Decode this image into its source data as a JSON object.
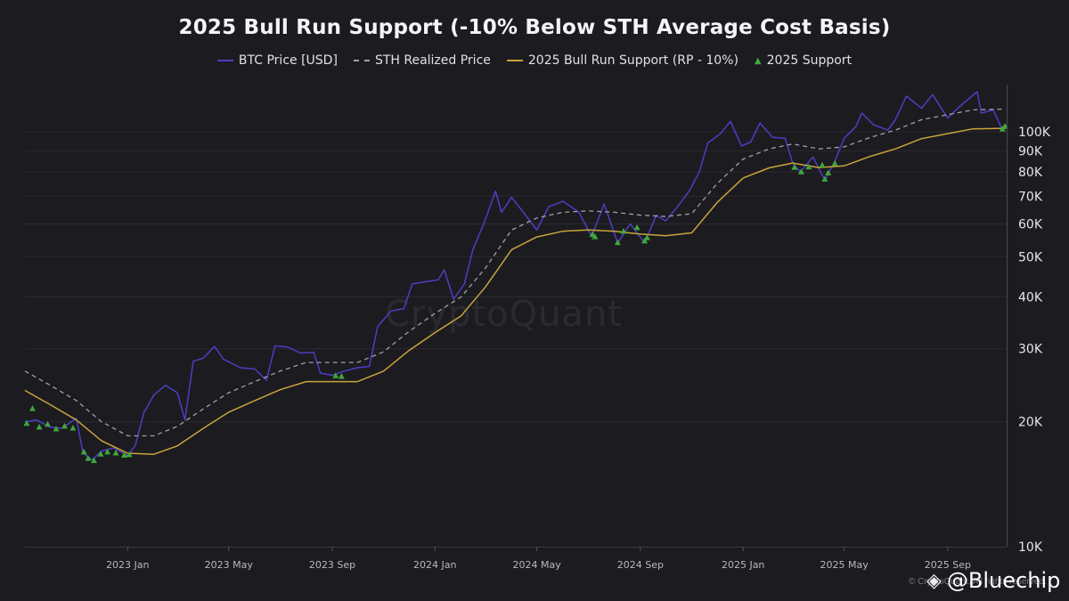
{
  "chart_data": {
    "type": "line",
    "title": "2025 Bull Run Support (-10% Below STH Average Cost Basis)",
    "y_scale": "log",
    "ylim": [
      10000,
      130000
    ],
    "y_ticks": [
      {
        "value": 10000,
        "label": "10K"
      },
      {
        "value": 20000,
        "label": "20K"
      },
      {
        "value": 30000,
        "label": "30K"
      },
      {
        "value": 40000,
        "label": "40K"
      },
      {
        "value": 50000,
        "label": "50K"
      },
      {
        "value": 60000,
        "label": "60K"
      },
      {
        "value": 70000,
        "label": "70K"
      },
      {
        "value": 80000,
        "label": "80K"
      },
      {
        "value": 90000,
        "label": "90K"
      },
      {
        "value": 100000,
        "label": "100K"
      }
    ],
    "xlim": [
      "2022-09-01",
      "2025-11-10"
    ],
    "x_ticks": [
      {
        "date": "2023-01-01",
        "label": "2023 Jan"
      },
      {
        "date": "2023-05-01",
        "label": "2023 May"
      },
      {
        "date": "2023-09-01",
        "label": "2023 Sep"
      },
      {
        "date": "2024-01-01",
        "label": "2024 Jan"
      },
      {
        "date": "2024-05-01",
        "label": "2024 May"
      },
      {
        "date": "2024-09-01",
        "label": "2024 Sep"
      },
      {
        "date": "2025-01-01",
        "label": "2025 Jan"
      },
      {
        "date": "2025-05-01",
        "label": "2025 May"
      },
      {
        "date": "2025-09-01",
        "label": "2025 Sep"
      }
    ],
    "legend_position": "top-center",
    "grid": "horizontal",
    "series": [
      {
        "name": "BTC Price [USD]",
        "color": "#4b3fc4",
        "style": "solid",
        "points": [
          [
            "2022-09-01",
            20000
          ],
          [
            "2022-09-15",
            20200
          ],
          [
            "2022-10-01",
            19400
          ],
          [
            "2022-10-15",
            19300
          ],
          [
            "2022-11-01",
            20400
          ],
          [
            "2022-11-09",
            16800
          ],
          [
            "2022-11-20",
            16200
          ],
          [
            "2022-12-01",
            17000
          ],
          [
            "2022-12-15",
            17300
          ],
          [
            "2023-01-01",
            16600
          ],
          [
            "2023-01-10",
            17500
          ],
          [
            "2023-01-20",
            21000
          ],
          [
            "2023-02-01",
            23200
          ],
          [
            "2023-02-15",
            24500
          ],
          [
            "2023-03-01",
            23500
          ],
          [
            "2023-03-10",
            20200
          ],
          [
            "2023-03-20",
            28000
          ],
          [
            "2023-04-01",
            28500
          ],
          [
            "2023-04-14",
            30400
          ],
          [
            "2023-04-25",
            28300
          ],
          [
            "2023-05-15",
            27000
          ],
          [
            "2023-06-01",
            26800
          ],
          [
            "2023-06-15",
            25200
          ],
          [
            "2023-06-25",
            30500
          ],
          [
            "2023-07-10",
            30300
          ],
          [
            "2023-07-25",
            29300
          ],
          [
            "2023-08-10",
            29400
          ],
          [
            "2023-08-18",
            26200
          ],
          [
            "2023-09-01",
            25900
          ],
          [
            "2023-09-15",
            26500
          ],
          [
            "2023-10-01",
            27000
          ],
          [
            "2023-10-15",
            27200
          ],
          [
            "2023-10-25",
            34000
          ],
          [
            "2023-11-10",
            37000
          ],
          [
            "2023-11-25",
            37500
          ],
          [
            "2023-12-05",
            43000
          ],
          [
            "2023-12-20",
            43500
          ],
          [
            "2024-01-05",
            44000
          ],
          [
            "2024-01-12",
            46500
          ],
          [
            "2024-01-23",
            39500
          ],
          [
            "2024-02-05",
            43000
          ],
          [
            "2024-02-15",
            52000
          ],
          [
            "2024-02-28",
            60000
          ],
          [
            "2024-03-13",
            72000
          ],
          [
            "2024-03-20",
            64000
          ],
          [
            "2024-04-01",
            69500
          ],
          [
            "2024-04-15",
            64000
          ],
          [
            "2024-05-01",
            58000
          ],
          [
            "2024-05-15",
            66000
          ],
          [
            "2024-06-01",
            68000
          ],
          [
            "2024-06-20",
            64000
          ],
          [
            "2024-07-05",
            56000
          ],
          [
            "2024-07-20",
            67000
          ],
          [
            "2024-08-05",
            54000
          ],
          [
            "2024-08-20",
            60000
          ],
          [
            "2024-09-06",
            54000
          ],
          [
            "2024-09-20",
            63000
          ],
          [
            "2024-10-01",
            61000
          ],
          [
            "2024-10-15",
            66000
          ],
          [
            "2024-10-29",
            72000
          ],
          [
            "2024-11-10",
            80000
          ],
          [
            "2024-11-20",
            94000
          ],
          [
            "2024-12-05",
            99000
          ],
          [
            "2024-12-17",
            106000
          ],
          [
            "2024-12-30",
            92500
          ],
          [
            "2025-01-10",
            94500
          ],
          [
            "2025-01-21",
            105000
          ],
          [
            "2025-02-05",
            97000
          ],
          [
            "2025-02-20",
            96500
          ],
          [
            "2025-03-01",
            84000
          ],
          [
            "2025-03-10",
            80000
          ],
          [
            "2025-03-25",
            87000
          ],
          [
            "2025-04-08",
            76500
          ],
          [
            "2025-04-20",
            85000
          ],
          [
            "2025-05-01",
            96500
          ],
          [
            "2025-05-15",
            103000
          ],
          [
            "2025-05-22",
            111000
          ],
          [
            "2025-06-05",
            104000
          ],
          [
            "2025-06-22",
            101000
          ],
          [
            "2025-07-01",
            107000
          ],
          [
            "2025-07-14",
            122000
          ],
          [
            "2025-08-01",
            114000
          ],
          [
            "2025-08-14",
            123000
          ],
          [
            "2025-09-01",
            108000
          ],
          [
            "2025-09-15",
            115000
          ],
          [
            "2025-10-06",
            125000
          ],
          [
            "2025-10-11",
            111000
          ],
          [
            "2025-10-25",
            113000
          ],
          [
            "2025-11-05",
            101000
          ],
          [
            "2025-11-08",
            103000
          ]
        ]
      },
      {
        "name": "STH Realized Price",
        "color": "#a0a0a8",
        "style": "dashed",
        "points": [
          [
            "2022-09-01",
            26500
          ],
          [
            "2022-10-01",
            24500
          ],
          [
            "2022-11-01",
            22500
          ],
          [
            "2022-12-01",
            20000
          ],
          [
            "2023-01-01",
            18500
          ],
          [
            "2023-02-01",
            18500
          ],
          [
            "2023-03-01",
            19500
          ],
          [
            "2023-04-01",
            21500
          ],
          [
            "2023-05-01",
            23500
          ],
          [
            "2023-06-01",
            25000
          ],
          [
            "2023-07-01",
            26500
          ],
          [
            "2023-08-01",
            27800
          ],
          [
            "2023-09-01",
            27800
          ],
          [
            "2023-10-01",
            27800
          ],
          [
            "2023-11-01",
            29500
          ],
          [
            "2023-12-01",
            33000
          ],
          [
            "2024-01-01",
            36500
          ],
          [
            "2024-02-01",
            40000
          ],
          [
            "2024-03-01",
            47000
          ],
          [
            "2024-04-01",
            58000
          ],
          [
            "2024-05-01",
            62000
          ],
          [
            "2024-06-01",
            64000
          ],
          [
            "2024-07-01",
            64500
          ],
          [
            "2024-08-01",
            64000
          ],
          [
            "2024-09-01",
            63000
          ],
          [
            "2024-10-01",
            62500
          ],
          [
            "2024-11-01",
            63500
          ],
          [
            "2024-12-01",
            75000
          ],
          [
            "2025-01-01",
            86000
          ],
          [
            "2025-02-01",
            91000
          ],
          [
            "2025-03-01",
            93500
          ],
          [
            "2025-04-01",
            91000
          ],
          [
            "2025-05-01",
            92000
          ],
          [
            "2025-06-01",
            97000
          ],
          [
            "2025-07-01",
            101000
          ],
          [
            "2025-08-01",
            107000
          ],
          [
            "2025-09-01",
            110000
          ],
          [
            "2025-10-01",
            113000
          ],
          [
            "2025-11-08",
            113500
          ]
        ]
      },
      {
        "name": "2025 Bull Run Support (RP - 10%)",
        "color": "#c9a43a",
        "style": "solid",
        "points": [
          [
            "2022-09-01",
            23800
          ],
          [
            "2022-10-01",
            22000
          ],
          [
            "2022-11-01",
            20200
          ],
          [
            "2022-12-01",
            18000
          ],
          [
            "2023-01-01",
            16800
          ],
          [
            "2023-02-01",
            16700
          ],
          [
            "2023-03-01",
            17500
          ],
          [
            "2023-04-01",
            19300
          ],
          [
            "2023-05-01",
            21100
          ],
          [
            "2023-06-01",
            22500
          ],
          [
            "2023-07-01",
            23900
          ],
          [
            "2023-08-01",
            25000
          ],
          [
            "2023-09-01",
            25000
          ],
          [
            "2023-10-01",
            25000
          ],
          [
            "2023-11-01",
            26500
          ],
          [
            "2023-12-01",
            29700
          ],
          [
            "2024-01-01",
            32800
          ],
          [
            "2024-02-01",
            36000
          ],
          [
            "2024-03-01",
            42300
          ],
          [
            "2024-04-01",
            52000
          ],
          [
            "2024-05-01",
            55800
          ],
          [
            "2024-06-01",
            57600
          ],
          [
            "2024-07-01",
            58000
          ],
          [
            "2024-08-01",
            57600
          ],
          [
            "2024-09-01",
            56700
          ],
          [
            "2024-10-01",
            56200
          ],
          [
            "2024-11-01",
            57100
          ],
          [
            "2024-12-01",
            67500
          ],
          [
            "2025-01-01",
            77400
          ],
          [
            "2025-02-01",
            81900
          ],
          [
            "2025-03-01",
            84100
          ],
          [
            "2025-04-01",
            82000
          ],
          [
            "2025-05-01",
            82800
          ],
          [
            "2025-06-01",
            87300
          ],
          [
            "2025-07-01",
            91000
          ],
          [
            "2025-08-01",
            96300
          ],
          [
            "2025-09-01",
            99000
          ],
          [
            "2025-10-01",
            101700
          ],
          [
            "2025-11-08",
            102000
          ]
        ]
      },
      {
        "name": "2025 Support",
        "color": "#3fa83a",
        "style": "markers",
        "points": [
          [
            "2022-09-03",
            19800
          ],
          [
            "2022-09-10",
            21500
          ],
          [
            "2022-09-18",
            19400
          ],
          [
            "2022-09-28",
            19700
          ],
          [
            "2022-10-08",
            19200
          ],
          [
            "2022-10-18",
            19500
          ],
          [
            "2022-10-28",
            19300
          ],
          [
            "2022-11-10",
            16900
          ],
          [
            "2022-11-15",
            16300
          ],
          [
            "2022-11-22",
            16100
          ],
          [
            "2022-11-30",
            16700
          ],
          [
            "2022-12-08",
            16900
          ],
          [
            "2022-12-18",
            16800
          ],
          [
            "2022-12-28",
            16600
          ],
          [
            "2023-01-03",
            16650
          ],
          [
            "2023-09-05",
            25800
          ],
          [
            "2023-09-12",
            25700
          ],
          [
            "2024-07-06",
            56500
          ],
          [
            "2024-07-09",
            55800
          ],
          [
            "2024-08-05",
            54000
          ],
          [
            "2024-08-12",
            57500
          ],
          [
            "2024-08-28",
            58700
          ],
          [
            "2024-09-06",
            54500
          ],
          [
            "2024-09-09",
            55500
          ],
          [
            "2025-03-03",
            82000
          ],
          [
            "2025-03-11",
            80000
          ],
          [
            "2025-03-20",
            82200
          ],
          [
            "2025-04-05",
            83000
          ],
          [
            "2025-04-08",
            76800
          ],
          [
            "2025-04-12",
            79500
          ],
          [
            "2025-04-20",
            83800
          ],
          [
            "2025-11-05",
            101500
          ],
          [
            "2025-11-08",
            103000
          ]
        ]
      }
    ]
  },
  "watermark": "CryptoQuant",
  "copyright": "© CryptoQuant. All rights reserved.",
  "brand": {
    "text": "@Bluechip",
    "icon": "binance-square-icon"
  }
}
